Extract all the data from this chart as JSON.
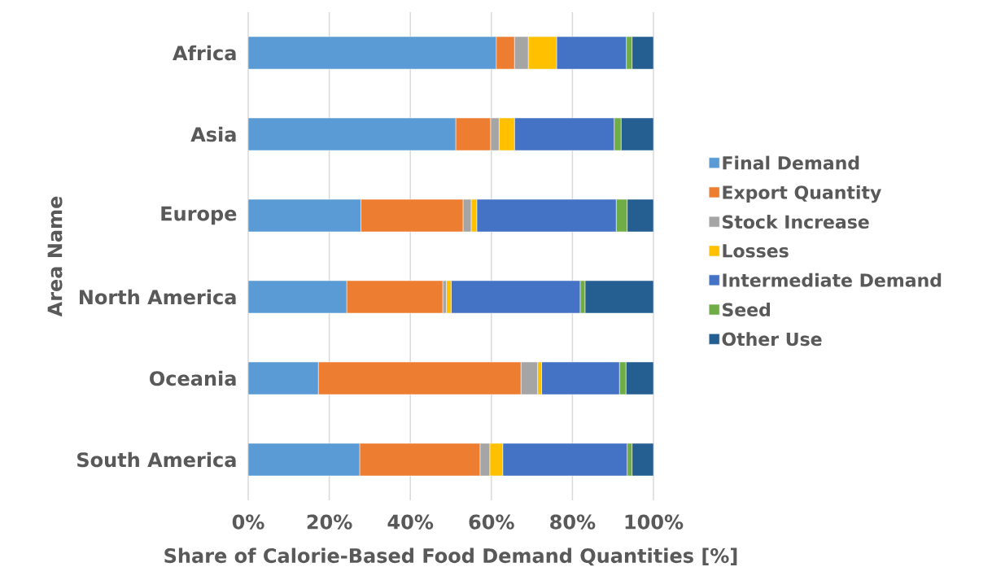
{
  "chart_data": {
    "type": "bar",
    "orientation": "horizontal",
    "stacked": true,
    "xlabel": "Share of Calorie-Based Food Demand Quantities [%]",
    "ylabel": "Area Name",
    "categories": [
      "Africa",
      "Asia",
      "Europe",
      "North America",
      "Oceania",
      "South America"
    ],
    "series": [
      {
        "name": "Final Demand",
        "color": "#5b9bd5",
        "values": [
          61.2,
          51.2,
          27.8,
          24.3,
          17.3,
          27.5
        ]
      },
      {
        "name": "Export Quantity",
        "color": "#ed7d31",
        "values": [
          4.5,
          8.6,
          25.2,
          23.7,
          50.0,
          29.7
        ]
      },
      {
        "name": "Stock Increase",
        "color": "#a5a5a5",
        "values": [
          3.4,
          2.1,
          2.0,
          0.9,
          4.1,
          2.4
        ]
      },
      {
        "name": "Losses",
        "color": "#ffc000",
        "values": [
          7.0,
          3.8,
          1.4,
          1.2,
          1.0,
          3.2
        ]
      },
      {
        "name": "Intermediate Demand",
        "color": "#4472c4",
        "values": [
          17.2,
          24.6,
          34.4,
          31.8,
          19.2,
          30.7
        ]
      },
      {
        "name": "Seed",
        "color": "#70ad47",
        "values": [
          1.4,
          1.7,
          2.7,
          1.2,
          1.6,
          1.2
        ]
      },
      {
        "name": "Other Use",
        "color": "#255e91",
        "values": [
          5.3,
          8.0,
          6.5,
          16.9,
          6.8,
          5.3
        ]
      }
    ],
    "xlim": [
      0,
      100
    ],
    "xticks": [
      {
        "value": 0,
        "label": "0%"
      },
      {
        "value": 20,
        "label": "20%"
      },
      {
        "value": 40,
        "label": "40%"
      },
      {
        "value": 60,
        "label": "60%"
      },
      {
        "value": 80,
        "label": "80%"
      },
      {
        "value": 100,
        "label": "100%"
      }
    ],
    "grid": "x",
    "legend": "right"
  }
}
